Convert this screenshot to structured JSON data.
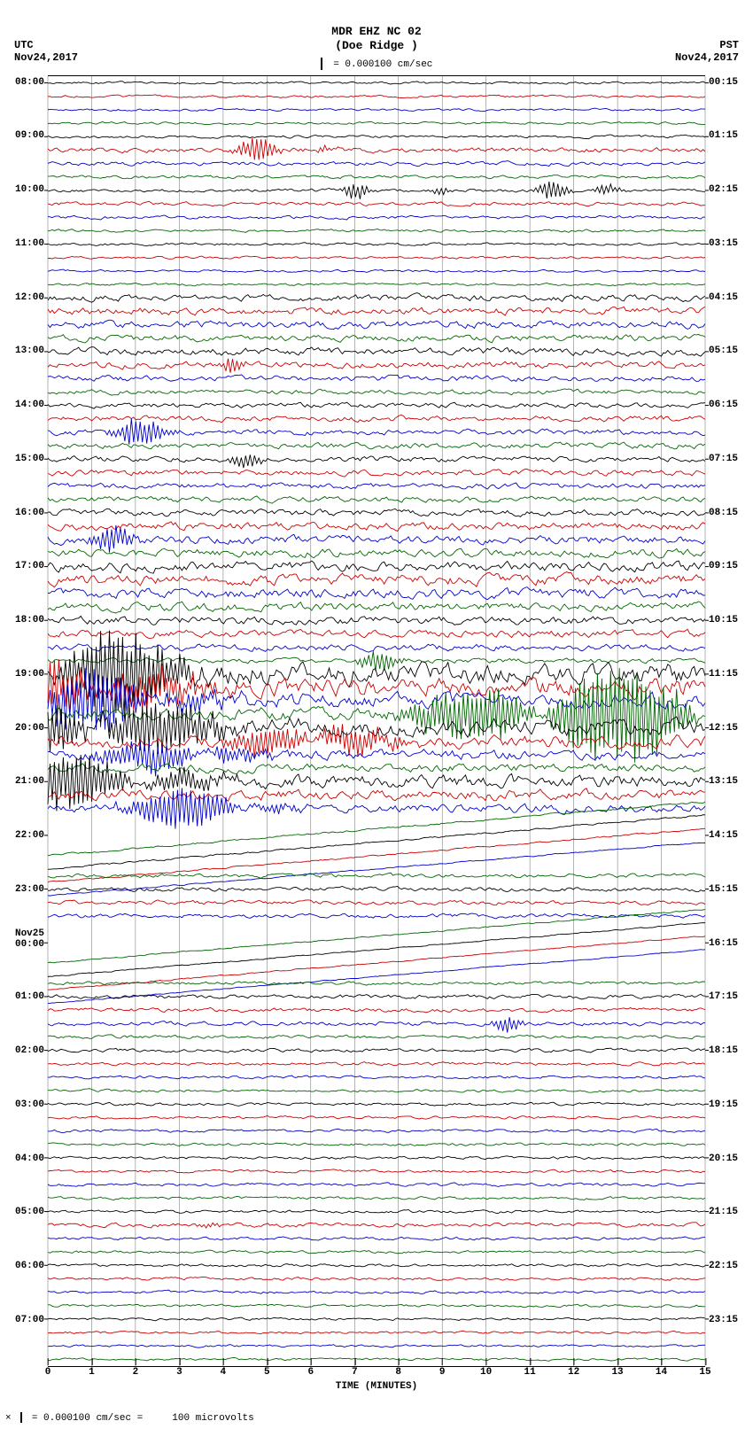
{
  "header": {
    "station_line1": "MDR EHZ NC 02",
    "station_line2": "(Doe Ridge )",
    "scale_text": "= 0.000100 cm/sec",
    "tz_left": "UTC",
    "tz_right": "PST",
    "date_left": "Nov24,2017",
    "date_right": "Nov24,2017"
  },
  "footer": {
    "text_prefix": "= 0.000100 cm/sec =",
    "text_suffix": "100 microvolts"
  },
  "xaxis": {
    "label": "TIME (MINUTES)",
    "ticks": [
      0,
      1,
      2,
      3,
      4,
      5,
      6,
      7,
      8,
      9,
      10,
      11,
      12,
      13,
      14,
      15
    ]
  },
  "plot": {
    "n_traces": 96,
    "trace_minutes": 15,
    "colors": [
      "#000000",
      "#cc0000",
      "#0000cc",
      "#006600"
    ],
    "grid_color": "#000000",
    "background": "#ffffff",
    "utc_start_hour": 8,
    "pst_start_h": 0,
    "pst_start_m": 15,
    "utc_day2_label": "Nov25",
    "amplitude_profile": [
      0.3,
      0.3,
      0.3,
      0.3,
      0.35,
      0.6,
      0.5,
      0.4,
      0.4,
      0.45,
      0.4,
      0.35,
      0.35,
      0.3,
      0.3,
      0.3,
      0.8,
      0.9,
      0.9,
      0.8,
      0.9,
      0.8,
      0.7,
      0.6,
      0.6,
      0.7,
      0.7,
      0.7,
      0.7,
      0.7,
      0.7,
      0.7,
      0.8,
      0.9,
      1.0,
      1.0,
      1.2,
      1.3,
      1.2,
      1.0,
      1.0,
      0.9,
      0.8,
      0.6,
      2.5,
      2.2,
      1.8,
      1.5,
      2.0,
      1.5,
      1.2,
      1.0,
      1.5,
      1.2,
      1.0,
      0.8,
      0.7,
      0.6,
      0.5,
      0.5,
      0.5,
      0.5,
      0.5,
      0.5,
      0.5,
      0.5,
      0.4,
      0.4,
      0.5,
      0.5,
      0.5,
      0.4,
      0.4,
      0.4,
      0.35,
      0.35,
      0.35,
      0.35,
      0.35,
      0.35,
      0.35,
      0.35,
      0.35,
      0.35,
      0.35,
      0.5,
      0.35,
      0.35,
      0.35,
      0.35,
      0.35,
      0.35,
      0.3,
      0.3,
      0.3,
      0.3
    ],
    "drift_traces": [
      55,
      56,
      57,
      58,
      63,
      64,
      65,
      66
    ],
    "large_events": [
      {
        "trace": 5,
        "t": 4.8,
        "amp": 6,
        "width": 0.3
      },
      {
        "trace": 5,
        "t": 6.2,
        "amp": 5,
        "width": 0.2
      },
      {
        "trace": 8,
        "t": 7.0,
        "amp": 4,
        "width": 0.2
      },
      {
        "trace": 8,
        "t": 9.0,
        "amp": 3,
        "width": 0.15
      },
      {
        "trace": 8,
        "t": 11.5,
        "amp": 4,
        "width": 0.25
      },
      {
        "trace": 8,
        "t": 12.8,
        "amp": 4,
        "width": 0.2
      },
      {
        "trace": 21,
        "t": 4.2,
        "amp": 3,
        "width": 0.2
      },
      {
        "trace": 26,
        "t": 2.0,
        "amp": 8,
        "width": 0.4
      },
      {
        "trace": 28,
        "t": 4.5,
        "amp": 4,
        "width": 0.25
      },
      {
        "trace": 34,
        "t": 1.5,
        "amp": 6,
        "width": 0.3
      },
      {
        "trace": 43,
        "t": 7.5,
        "amp": 5,
        "width": 0.3
      },
      {
        "trace": 44,
        "t": 1.0,
        "amp": 18,
        "width": 1.5
      },
      {
        "trace": 45,
        "t": 1.0,
        "amp": 16,
        "width": 1.3
      },
      {
        "trace": 46,
        "t": 1.5,
        "amp": 14,
        "width": 1.2
      },
      {
        "trace": 47,
        "t": 12.5,
        "amp": 20,
        "width": 2.5
      },
      {
        "trace": 48,
        "t": 0.8,
        "amp": 15,
        "width": 2.0
      },
      {
        "trace": 49,
        "t": 6.0,
        "amp": 12,
        "width": 1.0
      },
      {
        "trace": 50,
        "t": 3.0,
        "amp": 10,
        "width": 1.0
      },
      {
        "trace": 52,
        "t": 1.0,
        "amp": 12,
        "width": 1.5
      },
      {
        "trace": 54,
        "t": 3.5,
        "amp": 10,
        "width": 1.0
      },
      {
        "trace": 70,
        "t": 10.5,
        "amp": 3,
        "width": 0.2
      },
      {
        "trace": 85,
        "t": 3.8,
        "amp": 4,
        "width": 0.2
      }
    ]
  }
}
